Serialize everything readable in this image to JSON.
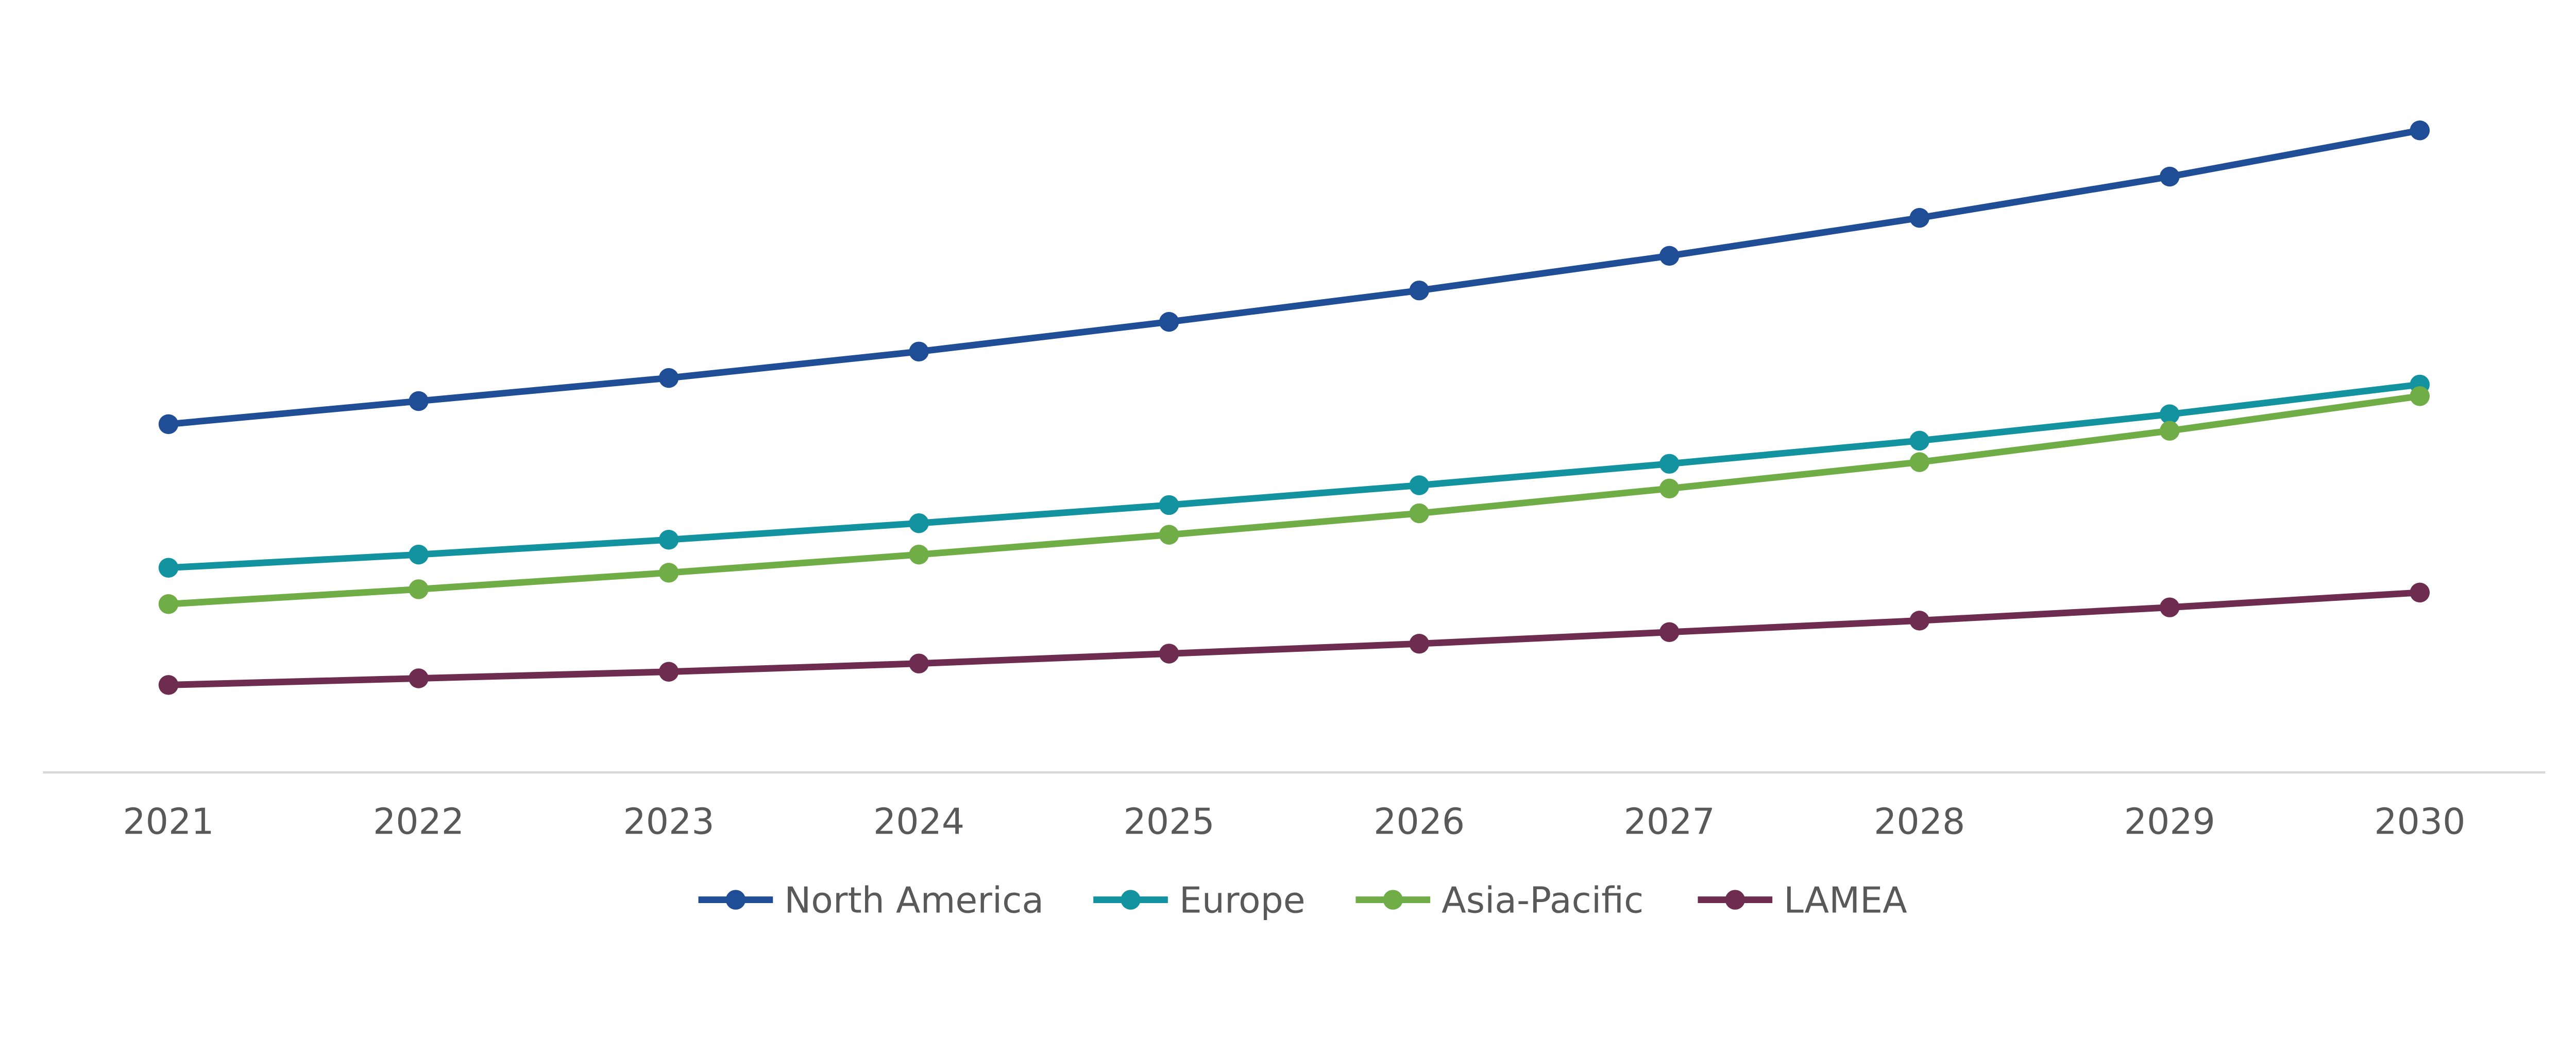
{
  "chart_data": {
    "type": "line",
    "title": "",
    "xlabel": "",
    "ylabel": "",
    "y_axis_shown": false,
    "grid": false,
    "legend_position": "bottom",
    "ylim": [
      0,
      450
    ],
    "x": [
      "2021",
      "2022",
      "2023",
      "2024",
      "2025",
      "2026",
      "2027",
      "2028",
      "2029",
      "2030"
    ],
    "series": [
      {
        "name": "North America",
        "color": "#1f4e96",
        "values": [
          211,
          225,
          239,
          255,
          273,
          292,
          313,
          336,
          361,
          389
        ]
      },
      {
        "name": "Europe",
        "color": "#13939f",
        "values": [
          124,
          132,
          141,
          151,
          162,
          174,
          187,
          201,
          217,
          235
        ]
      },
      {
        "name": "Asia-Pacific",
        "color": "#70ad47",
        "values": [
          102,
          111,
          121,
          132,
          144,
          157,
          172,
          188,
          207,
          228
        ]
      },
      {
        "name": "LAMEA",
        "color": "#6d2c50",
        "values": [
          53,
          57,
          61,
          66,
          72,
          78,
          85,
          92,
          100,
          109
        ]
      }
    ]
  }
}
